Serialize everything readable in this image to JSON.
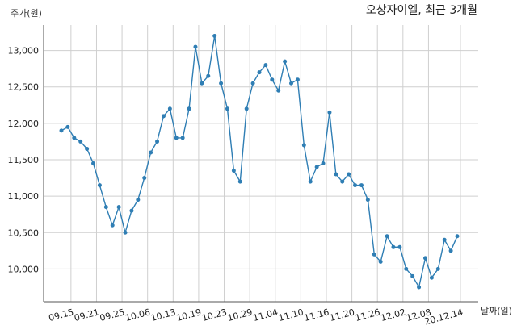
{
  "chart_data": {
    "type": "line",
    "title": "오상자이엘, 최근 3개월",
    "ylabel": "주가(원)",
    "xlabel": "날짜(일)",
    "ylim": [
      9550,
      13350
    ],
    "yticks": [
      10000,
      10500,
      11000,
      11500,
      12000,
      12500,
      13000
    ],
    "ytick_labels": [
      "10,000",
      "10,500",
      "11,000",
      "11,500",
      "12,000",
      "12,500",
      "13,000"
    ],
    "grid": true,
    "line_color": "#2f7eb4",
    "x_tick_labels": [
      "09.15",
      "09.21",
      "09.25",
      "10.06",
      "10.13",
      "10.19",
      "10.23",
      "10.29",
      "11.04",
      "11.10",
      "11.16",
      "11.20",
      "11.26",
      "12.02",
      "12.08",
      "20.12.14"
    ],
    "x_tick_positions": [
      1.5,
      5.5,
      9.5,
      13.5,
      17.5,
      21.5,
      25.5,
      29.5,
      33.5,
      37.5,
      41.5,
      45.5,
      49.5,
      53.5,
      57.5,
      62.5
    ],
    "series": [
      {
        "values": [
          11900,
          11950,
          11800,
          11750,
          11650,
          11450,
          11150,
          10850,
          10600,
          10850,
          10500,
          10800,
          10950,
          11250,
          11600,
          11750,
          12100,
          12200,
          11800,
          11800,
          12200,
          13050,
          12550,
          12650,
          13200,
          12550,
          12200,
          11350,
          11200,
          12200,
          12550,
          12700,
          12800,
          12600,
          12450,
          12850,
          12550,
          12600,
          11700,
          11200,
          11400,
          11450,
          12150,
          11300,
          11200,
          11300,
          11150,
          11150,
          10950,
          10200,
          10100,
          10450,
          10300,
          10300,
          10000,
          9900,
          9750,
          10150,
          9880,
          10000,
          10400,
          10250,
          10450
        ]
      }
    ]
  }
}
